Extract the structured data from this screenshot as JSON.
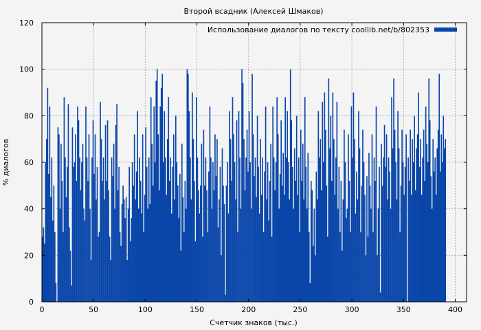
{
  "chart_data": {
    "type": "bar",
    "title": "Второй всадник (Алексей Шмаков)",
    "xlabel": "Счетчик знаков (тыс.)",
    "ylabel": "% диалогов",
    "xlim": [
      0,
      411
    ],
    "ylim": [
      0,
      120
    ],
    "xticks": [
      0,
      50,
      100,
      150,
      200,
      250,
      300,
      350,
      400
    ],
    "yticks": [
      0,
      20,
      40,
      60,
      80,
      100,
      120
    ],
    "grid": true,
    "legend_position": "top-right",
    "bar_color": "#0a46aa",
    "series": [
      {
        "name": "Использование диалогов по тексту coollib.net/b/802353",
        "x_step": 1,
        "values": [
          28,
          32,
          25,
          60,
          70,
          92,
          55,
          84,
          45,
          62,
          35,
          50,
          30,
          8,
          0,
          75,
          72,
          40,
          68,
          52,
          30,
          88,
          62,
          45,
          58,
          85,
          32,
          22,
          7,
          75,
          58,
          60,
          72,
          52,
          84,
          78,
          62,
          48,
          60,
          68,
          40,
          35,
          84,
          62,
          52,
          72,
          40,
          18,
          62,
          78,
          55,
          72,
          44,
          58,
          28,
          30,
          86,
          70,
          52,
          62,
          44,
          76,
          52,
          78,
          48,
          28,
          18,
          62,
          54,
          68,
          40,
          76,
          85,
          48,
          58,
          30,
          24,
          42,
          50,
          44,
          36,
          45,
          18,
          40,
          58,
          26,
          36,
          60,
          50,
          72,
          44,
          56,
          82,
          40,
          62,
          52,
          38,
          72,
          30,
          46,
          75,
          58,
          40,
          62,
          42,
          88,
          68,
          50,
          84,
          60,
          95,
          100,
          72,
          48,
          84,
          92,
          98,
          60,
          82,
          62,
          46,
          70,
          88,
          52,
          62,
          38,
          58,
          72,
          44,
          80,
          60,
          50,
          36,
          55,
          22,
          68,
          45,
          30,
          52,
          40,
          100,
          98,
          82,
          62,
          44,
          90,
          70,
          52,
          26,
          88,
          62,
          48,
          38,
          50,
          68,
          28,
          74,
          50,
          62,
          48,
          30,
          56,
          84,
          62,
          40,
          60,
          48,
          72,
          54,
          70,
          32,
          44,
          58,
          20,
          66,
          50,
          42,
          3,
          50,
          60,
          38,
          82,
          70,
          52,
          88,
          72,
          60,
          44,
          78,
          30,
          82,
          62,
          40,
          100,
          94,
          70,
          48,
          62,
          74,
          56,
          82,
          60,
          40,
          98,
          72,
          54,
          62,
          45,
          80,
          58,
          38,
          70,
          46,
          62,
          30,
          56,
          84,
          44,
          60,
          35,
          52,
          68,
          28,
          84,
          62,
          48,
          60,
          88,
          72,
          40,
          55,
          78,
          50,
          64,
          46,
          88,
          62,
          82,
          60,
          44,
          100,
          78,
          58,
          40,
          66,
          52,
          80,
          46,
          62,
          30,
          74,
          52,
          68,
          44,
          88,
          58,
          40,
          64,
          30,
          8,
          52,
          48,
          24,
          40,
          20,
          56,
          44,
          82,
          62,
          70,
          48,
          86,
          60,
          90,
          74,
          50,
          28,
          96,
          66,
          80,
          52,
          90,
          70,
          46,
          62,
          86,
          40,
          58,
          30,
          52,
          22,
          44,
          74,
          60,
          36,
          40,
          72,
          52,
          30,
          84,
          62,
          90,
          70,
          38,
          56,
          44,
          82,
          66,
          30,
          50,
          74,
          60,
          46,
          20,
          54,
          28,
          64,
          50,
          40,
          72,
          30,
          62,
          52,
          84,
          20,
          40,
          58,
          4,
          68,
          50,
          62,
          76,
          58,
          72,
          44,
          62,
          56,
          40,
          88,
          66,
          96,
          74,
          60,
          44,
          82,
          66,
          30,
          50,
          74,
          60,
          46,
          58,
          72,
          0,
          62,
          52,
          74,
          46,
          70,
          60,
          80,
          48,
          66,
          72,
          90,
          58,
          70,
          46,
          62,
          74,
          52,
          84,
          68,
          60,
          96,
          78,
          54,
          40,
          70,
          56,
          62,
          46,
          66,
          74,
          98,
          56,
          72,
          60,
          80,
          66,
          70
        ]
      }
    ]
  }
}
